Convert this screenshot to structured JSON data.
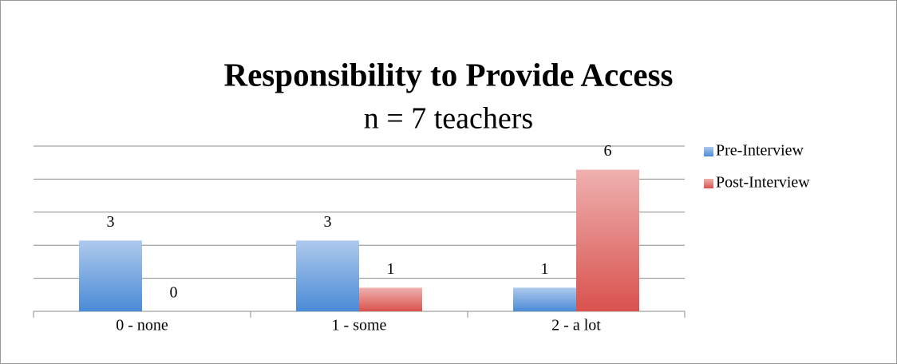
{
  "chart_data": {
    "type": "bar",
    "title": "Responsibility to Provide Access",
    "subtitle": "n = 7 teachers",
    "categories": [
      "0 - none",
      "1 - some",
      "2 - a lot"
    ],
    "series": [
      {
        "name": "Pre-Interview",
        "color": "#4a8ad6",
        "values": [
          3,
          3,
          1
        ]
      },
      {
        "name": "Post-Interview",
        "color": "#d9524e",
        "values": [
          0,
          1,
          6
        ]
      }
    ],
    "ylim": [
      0,
      7
    ],
    "yticks": [
      0,
      1.4,
      2.8,
      4.2,
      5.6,
      7
    ],
    "grid": true,
    "legend": "right"
  }
}
